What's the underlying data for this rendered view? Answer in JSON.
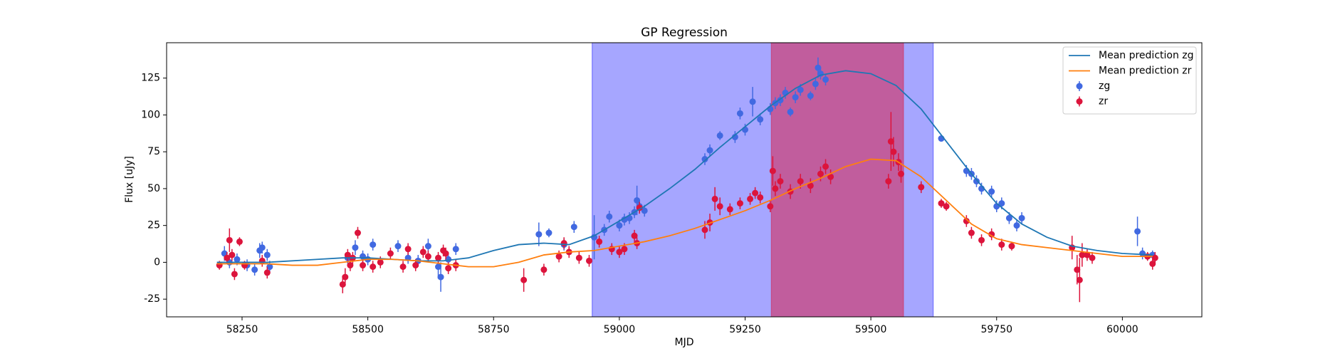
{
  "chart_data": {
    "type": "errorbar",
    "title": "GP Regression",
    "x_label": "MJD",
    "y_label": "Flux [uJy]",
    "xlim": [
      58100,
      60158
    ],
    "ylim": [
      -37,
      149
    ],
    "xticks": [
      58250,
      58500,
      58750,
      59000,
      59250,
      59500,
      59750,
      60000
    ],
    "yticks": [
      -25,
      0,
      25,
      50,
      75,
      100,
      125
    ],
    "legend": "upper right",
    "spans": [
      {
        "x": [
          58946,
          59624
        ],
        "color": "#0000ff"
      },
      {
        "x": [
          59302,
          59565
        ],
        "color": "#dc143c"
      }
    ],
    "series": [
      {
        "name": "Mean prediction zg",
        "kind": "line",
        "color": "#1f77b4",
        "x": [
          58200,
          58300,
          58400,
          58450,
          58500,
          58550,
          58600,
          58650,
          58700,
          58750,
          58800,
          58850,
          58900,
          58950,
          59000,
          59050,
          59100,
          59150,
          59200,
          59250,
          59300,
          59350,
          59400,
          59450,
          59500,
          59550,
          59600,
          59650,
          59700,
          59750,
          59800,
          59850,
          59900,
          59950,
          60000,
          60060
        ],
        "values": [
          0,
          0,
          2,
          3,
          3,
          2,
          1,
          1,
          3,
          8,
          12,
          13,
          12,
          18,
          28,
          38,
          50,
          63,
          78,
          92,
          106,
          118,
          127,
          130,
          128,
          120,
          104,
          82,
          60,
          40,
          26,
          17,
          11,
          8,
          6,
          5
        ]
      },
      {
        "name": "Mean prediction zr",
        "kind": "line",
        "color": "#ff7f0e",
        "x": [
          58200,
          58250,
          58300,
          58350,
          58400,
          58450,
          58500,
          58550,
          58600,
          58650,
          58700,
          58750,
          58800,
          58850,
          58900,
          58950,
          59000,
          59050,
          59100,
          59150,
          59200,
          59250,
          59300,
          59350,
          59400,
          59450,
          59500,
          59550,
          59600,
          59650,
          59700,
          59750,
          59800,
          59850,
          59900,
          59950,
          60000,
          60060
        ],
        "values": [
          -1,
          -1,
          -1,
          -2,
          -2,
          0,
          2,
          2,
          1,
          -1,
          -3,
          -3,
          0,
          5,
          7,
          8,
          11,
          14,
          18,
          23,
          29,
          35,
          42,
          50,
          57,
          65,
          70,
          69,
          58,
          42,
          26,
          16,
          12,
          10,
          8,
          6,
          4,
          4
        ]
      },
      {
        "name": "zg",
        "kind": "errorbar",
        "color": "#4169e1",
        "x": [
          58215,
          58225,
          58240,
          58260,
          58275,
          58285,
          58290,
          58300,
          58305,
          58460,
          58475,
          58490,
          58500,
          58510,
          58560,
          58580,
          58600,
          58620,
          58640,
          58645,
          58660,
          58675,
          58840,
          58860,
          58890,
          58910,
          58950,
          58970,
          58980,
          59000,
          59010,
          59020,
          59030,
          59035,
          59040,
          59050,
          59170,
          59180,
          59200,
          59230,
          59240,
          59250,
          59265,
          59280,
          59300,
          59310,
          59320,
          59330,
          59340,
          59350,
          59360,
          59380,
          59390,
          59395,
          59400,
          59410,
          59640,
          59690,
          59700,
          59710,
          59720,
          59740,
          59750,
          59760,
          59775,
          59790,
          59800,
          60030,
          60040,
          60060
        ],
        "values": [
          6,
          0,
          2,
          -2,
          -5,
          8,
          10,
          5,
          -3,
          3,
          10,
          4,
          2,
          12,
          11,
          3,
          1,
          11,
          -3,
          -10,
          2,
          9,
          19,
          20,
          12,
          24,
          17,
          22,
          31,
          25,
          29,
          30,
          34,
          42,
          38,
          35,
          70,
          76,
          86,
          85,
          101,
          90,
          109,
          97,
          104,
          108,
          110,
          115,
          102,
          112,
          117,
          113,
          121,
          132,
          128,
          124,
          84,
          62,
          60,
          55,
          50,
          48,
          38,
          40,
          30,
          25,
          30,
          21,
          6,
          5
        ],
        "errors": [
          5,
          4,
          4,
          4,
          4,
          5,
          4,
          4,
          4,
          4,
          5,
          4,
          4,
          4,
          4,
          4,
          4,
          5,
          8,
          10,
          4,
          4,
          8,
          3,
          4,
          4,
          15,
          4,
          4,
          4,
          4,
          4,
          4,
          10,
          4,
          4,
          4,
          4,
          3,
          4,
          4,
          4,
          10,
          4,
          4,
          4,
          4,
          4,
          3,
          4,
          4,
          3,
          4,
          7,
          4,
          4,
          2,
          4,
          4,
          4,
          4,
          4,
          4,
          4,
          4,
          4,
          4,
          10,
          4,
          3
        ]
      },
      {
        "name": "zr",
        "kind": "errorbar",
        "color": "#dc143c",
        "x": [
          58205,
          58220,
          58225,
          58230,
          58235,
          58245,
          58255,
          58290,
          58300,
          58450,
          58455,
          58460,
          58465,
          58470,
          58480,
          58490,
          58510,
          58525,
          58545,
          58570,
          58580,
          58595,
          58610,
          58620,
          58640,
          58650,
          58655,
          58660,
          58675,
          58810,
          58850,
          58880,
          58890,
          58900,
          58920,
          58940,
          58960,
          58985,
          59000,
          59010,
          59030,
          59035,
          59040,
          59170,
          59180,
          59190,
          59200,
          59220,
          59240,
          59260,
          59270,
          59280,
          59300,
          59305,
          59310,
          59320,
          59340,
          59360,
          59380,
          59400,
          59410,
          59420,
          59535,
          59540,
          59545,
          59555,
          59560,
          59600,
          59640,
          59650,
          59690,
          59700,
          59720,
          59740,
          59760,
          59780,
          59900,
          59910,
          59915,
          59920,
          59930,
          59940,
          60050,
          60060,
          60065
        ],
        "values": [
          -2,
          3,
          15,
          5,
          -8,
          14,
          -2,
          1,
          -7,
          -15,
          -10,
          5,
          -2,
          3,
          20,
          -2,
          -3,
          0,
          6,
          -3,
          9,
          -2,
          7,
          4,
          3,
          8,
          6,
          -4,
          -2,
          -12,
          -5,
          4,
          13,
          7,
          3,
          1,
          14,
          9,
          7,
          9,
          18,
          13,
          37,
          22,
          27,
          43,
          38,
          36,
          40,
          43,
          47,
          44,
          38,
          62,
          50,
          55,
          48,
          55,
          52,
          60,
          65,
          58,
          55,
          82,
          75,
          68,
          60,
          51,
          40,
          38,
          28,
          20,
          15,
          19,
          12,
          11,
          10,
          -5,
          -12,
          5,
          5,
          3,
          4,
          -1,
          3
        ],
        "errors": [
          3,
          4,
          8,
          4,
          4,
          3,
          3,
          4,
          4,
          6,
          6,
          4,
          4,
          4,
          4,
          4,
          4,
          4,
          4,
          4,
          4,
          4,
          4,
          4,
          4,
          4,
          4,
          4,
          4,
          8,
          4,
          4,
          4,
          4,
          4,
          4,
          4,
          4,
          4,
          4,
          4,
          4,
          4,
          6,
          6,
          8,
          6,
          4,
          4,
          4,
          4,
          4,
          4,
          10,
          5,
          5,
          5,
          5,
          5,
          5,
          5,
          5,
          5,
          20,
          10,
          6,
          6,
          4,
          3,
          3,
          4,
          4,
          4,
          4,
          4,
          3,
          8,
          10,
          15,
          8,
          4,
          4,
          3,
          4,
          4
        ]
      }
    ]
  }
}
